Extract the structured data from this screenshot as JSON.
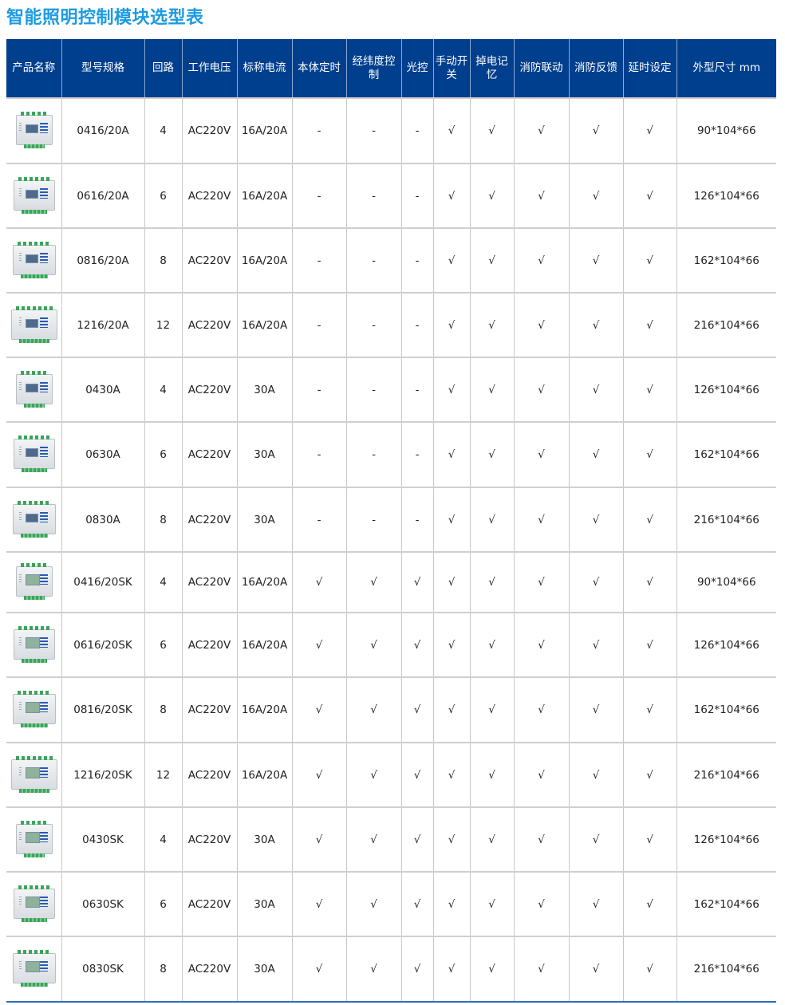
{
  "title": "智能照明控制模块选型表",
  "colors": {
    "header_bg": "#003f8e",
    "title": "#1d9be2",
    "terminal": "#3aa55a",
    "button": "#2a5bb5"
  },
  "columns": [
    "产品名称",
    "型号规格",
    "回路",
    "工作电压",
    "标称电流",
    "本体定时",
    "经纬度控制",
    "光控",
    "手动开关",
    "掉电记忆",
    "消防联动",
    "消防反馈",
    "延时设定",
    "外型尺寸 mm"
  ],
  "rows": [
    {
      "model": "0416/20A",
      "circuits": "4",
      "voltage": "AC220V",
      "current": "16A/20A",
      "timer": "-",
      "geo": "-",
      "light": "-",
      "manual": "√",
      "memory": "√",
      "fire_link": "√",
      "fire_fb": "√",
      "delay": "√",
      "size": "90*104*66",
      "image": "module-4ch"
    },
    {
      "model": "0616/20A",
      "circuits": "6",
      "voltage": "AC220V",
      "current": "16A/20A",
      "timer": "-",
      "geo": "-",
      "light": "-",
      "manual": "√",
      "memory": "√",
      "fire_link": "√",
      "fire_fb": "√",
      "delay": "√",
      "size": "126*104*66",
      "image": "module-6ch"
    },
    {
      "model": "0816/20A",
      "circuits": "8",
      "voltage": "AC220V",
      "current": "16A/20A",
      "timer": "-",
      "geo": "-",
      "light": "-",
      "manual": "√",
      "memory": "√",
      "fire_link": "√",
      "fire_fb": "√",
      "delay": "√",
      "size": "162*104*66",
      "image": "module-8ch"
    },
    {
      "model": "1216/20A",
      "circuits": "12",
      "voltage": "AC220V",
      "current": "16A/20A",
      "timer": "-",
      "geo": "-",
      "light": "-",
      "manual": "√",
      "memory": "√",
      "fire_link": "√",
      "fire_fb": "√",
      "delay": "√",
      "size": "216*104*66",
      "image": "module-12ch"
    },
    {
      "model": "0430A",
      "circuits": "4",
      "voltage": "AC220V",
      "current": "30A",
      "timer": "-",
      "geo": "-",
      "light": "-",
      "manual": "√",
      "memory": "√",
      "fire_link": "√",
      "fire_fb": "√",
      "delay": "√",
      "size": "126*104*66",
      "image": "module-4ch"
    },
    {
      "model": "0630A",
      "circuits": "6",
      "voltage": "AC220V",
      "current": "30A",
      "timer": "-",
      "geo": "-",
      "light": "-",
      "manual": "√",
      "memory": "√",
      "fire_link": "√",
      "fire_fb": "√",
      "delay": "√",
      "size": "162*104*66",
      "image": "module-6ch"
    },
    {
      "model": "0830A",
      "circuits": "8",
      "voltage": "AC220V",
      "current": "30A",
      "timer": "-",
      "geo": "-",
      "light": "-",
      "manual": "√",
      "memory": "√",
      "fire_link": "√",
      "fire_fb": "√",
      "delay": "√",
      "size": "216*104*66",
      "image": "module-8ch"
    },
    {
      "model": "0416/20SK",
      "circuits": "4",
      "voltage": "AC220V",
      "current": "16A/20A",
      "timer": "√",
      "geo": "√",
      "light": "√",
      "manual": "√",
      "memory": "√",
      "fire_link": "√",
      "fire_fb": "√",
      "delay": "√",
      "size": "90*104*66",
      "image": "module-sk-4ch"
    },
    {
      "model": "0616/20SK",
      "circuits": "6",
      "voltage": "AC220V",
      "current": "16A/20A",
      "timer": "√",
      "geo": "√",
      "light": "√",
      "manual": "√",
      "memory": "√",
      "fire_link": "√",
      "fire_fb": "√",
      "delay": "√",
      "size": "126*104*66",
      "image": "module-sk-6ch"
    },
    {
      "model": "0816/20SK",
      "circuits": "8",
      "voltage": "AC220V",
      "current": "16A/20A",
      "timer": "√",
      "geo": "√",
      "light": "√",
      "manual": "√",
      "memory": "√",
      "fire_link": "√",
      "fire_fb": "√",
      "delay": "√",
      "size": "162*104*66",
      "image": "module-sk-8ch"
    },
    {
      "model": "1216/20SK",
      "circuits": "12",
      "voltage": "AC220V",
      "current": "16A/20A",
      "timer": "√",
      "geo": "√",
      "light": "√",
      "manual": "√",
      "memory": "√",
      "fire_link": "√",
      "fire_fb": "√",
      "delay": "√",
      "size": "216*104*66",
      "image": "module-sk-12ch"
    },
    {
      "model": "0430SK",
      "circuits": "4",
      "voltage": "AC220V",
      "current": "30A",
      "timer": "√",
      "geo": "√",
      "light": "√",
      "manual": "√",
      "memory": "√",
      "fire_link": "√",
      "fire_fb": "√",
      "delay": "√",
      "size": "126*104*66",
      "image": "module-sk-4ch"
    },
    {
      "model": "0630SK",
      "circuits": "6",
      "voltage": "AC220V",
      "current": "30A",
      "timer": "√",
      "geo": "√",
      "light": "√",
      "manual": "√",
      "memory": "√",
      "fire_link": "√",
      "fire_fb": "√",
      "delay": "√",
      "size": "162*104*66",
      "image": "module-sk-6ch"
    },
    {
      "model": "0830SK",
      "circuits": "8",
      "voltage": "AC220V",
      "current": "30A",
      "timer": "√",
      "geo": "√",
      "light": "√",
      "manual": "√",
      "memory": "√",
      "fire_link": "√",
      "fire_fb": "√",
      "delay": "√",
      "size": "216*104*66",
      "image": "module-sk-8ch"
    }
  ]
}
